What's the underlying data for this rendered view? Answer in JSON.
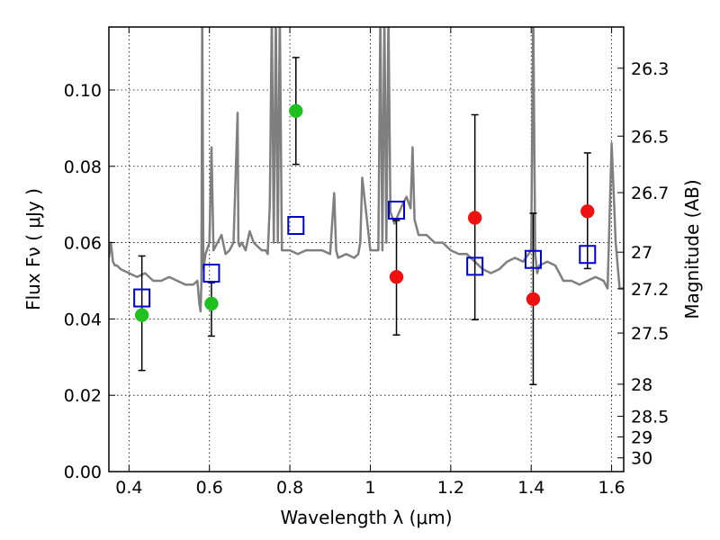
{
  "chart_data": {
    "type": "scatter",
    "xlabel": "Wavelength  λ (μm)",
    "ylabel": "Flux  Fν  ( μJy )",
    "ylabel_right": "Magnitude (AB)",
    "xlim": [
      0.35,
      1.63
    ],
    "ylim": [
      0.0,
      0.1165
    ],
    "grid": true,
    "x_ticks": [
      0.4,
      0.6,
      0.8,
      1.0,
      1.2,
      1.4,
      1.6
    ],
    "x_tick_labels": [
      "0.4",
      "0.6",
      "0.8",
      "1",
      "1.2",
      "1.4",
      "1.6"
    ],
    "y_ticks": [
      0.0,
      0.02,
      0.04,
      0.06,
      0.08,
      0.1
    ],
    "y_tick_labels": [
      "0.00",
      "0.02",
      "0.04",
      "0.06",
      "0.08",
      "0.10"
    ],
    "right_ticks": [
      {
        "label": "26.3",
        "flux": 0.1057
      },
      {
        "label": "26.5",
        "flux": 0.0879
      },
      {
        "label": "26.7",
        "flux": 0.0731
      },
      {
        "label": "27",
        "flux": 0.0575
      },
      {
        "label": "27.2",
        "flux": 0.0479
      },
      {
        "label": "27.5",
        "flux": 0.0363
      },
      {
        "label": "28",
        "flux": 0.0229
      },
      {
        "label": "28.5",
        "flux": 0.0145
      },
      {
        "label": "29",
        "flux": 0.0091
      },
      {
        "label": "30",
        "flux": 0.0036
      }
    ],
    "colors": {
      "spectrum": "#7f7f7f",
      "green_points": "#1fc11f",
      "red_points": "#ef1010",
      "model_squares": "#0000cc",
      "errorbar": "#000000"
    },
    "series": [
      {
        "kind": "spectrum",
        "x": [
          0.35,
          0.355,
          0.36,
          0.365,
          0.37,
          0.38,
          0.4,
          0.42,
          0.44,
          0.46,
          0.48,
          0.5,
          0.52,
          0.54,
          0.56,
          0.57,
          0.575,
          0.578,
          0.58,
          0.582,
          0.585,
          0.59,
          0.6,
          0.605,
          0.61,
          0.62,
          0.63,
          0.64,
          0.65,
          0.66,
          0.67,
          0.672,
          0.675,
          0.68,
          0.69,
          0.7,
          0.71,
          0.72,
          0.73,
          0.74,
          0.745,
          0.75,
          0.755,
          0.76,
          0.765,
          0.77,
          0.775,
          0.78,
          0.79,
          0.8,
          0.82,
          0.84,
          0.86,
          0.88,
          0.9,
          0.91,
          0.915,
          0.92,
          0.94,
          0.96,
          0.97,
          0.975,
          0.98,
          1.0,
          1.02,
          1.025,
          1.03,
          1.035,
          1.04,
          1.045,
          1.05,
          1.06,
          1.08,
          1.09,
          1.1,
          1.105,
          1.11,
          1.115,
          1.12,
          1.14,
          1.16,
          1.18,
          1.2,
          1.22,
          1.24,
          1.26,
          1.28,
          1.3,
          1.32,
          1.34,
          1.36,
          1.38,
          1.4,
          1.405,
          1.41,
          1.415,
          1.42,
          1.44,
          1.46,
          1.48,
          1.5,
          1.52,
          1.54,
          1.56,
          1.58,
          1.59,
          1.6,
          1.61,
          1.62,
          1.63
        ],
        "y": [
          0.056,
          0.06,
          0.055,
          0.054,
          0.054,
          0.053,
          0.052,
          0.051,
          0.052,
          0.05,
          0.05,
          0.051,
          0.05,
          0.049,
          0.049,
          0.05,
          0.044,
          0.042,
          0.05,
          0.12,
          0.053,
          0.057,
          0.06,
          0.085,
          0.058,
          0.06,
          0.062,
          0.057,
          0.058,
          0.06,
          0.094,
          0.06,
          0.059,
          0.06,
          0.058,
          0.063,
          0.06,
          0.059,
          0.058,
          0.058,
          0.057,
          0.07,
          0.12,
          0.06,
          0.12,
          0.06,
          0.12,
          0.058,
          0.058,
          0.058,
          0.057,
          0.058,
          0.058,
          0.058,
          0.057,
          0.073,
          0.058,
          0.056,
          0.057,
          0.056,
          0.057,
          0.06,
          0.077,
          0.058,
          0.058,
          0.12,
          0.058,
          0.12,
          0.06,
          0.12,
          0.068,
          0.065,
          0.07,
          0.072,
          0.069,
          0.085,
          0.066,
          0.064,
          0.062,
          0.062,
          0.06,
          0.06,
          0.058,
          0.057,
          0.057,
          0.055,
          0.053,
          0.052,
          0.053,
          0.055,
          0.056,
          0.055,
          0.058,
          0.12,
          0.057,
          0.052,
          0.054,
          0.055,
          0.054,
          0.05,
          0.05,
          0.049,
          0.05,
          0.051,
          0.05,
          0.048,
          0.086,
          0.06,
          0.048,
          0.048
        ]
      },
      {
        "kind": "observed_green",
        "x": [
          0.432,
          0.605,
          0.815
        ],
        "y": [
          0.041,
          0.044,
          0.0945
        ],
        "err_low": [
          0.0265,
          0.0355,
          0.0805
        ],
        "err_high": [
          0.0565,
          0.0495,
          0.1085
        ]
      },
      {
        "kind": "observed_red",
        "x": [
          1.065,
          1.26,
          1.405,
          1.54
        ],
        "y": [
          0.051,
          0.0665,
          0.0452,
          0.0682
        ],
        "err_low": [
          0.0358,
          0.0398,
          0.0228,
          0.0532
        ],
        "err_high": [
          0.0658,
          0.0935,
          0.0677,
          0.0835
        ]
      },
      {
        "kind": "model_squares",
        "x": [
          0.432,
          0.605,
          0.815,
          1.065,
          1.26,
          1.405,
          1.54
        ],
        "y": [
          0.0455,
          0.052,
          0.0645,
          0.0685,
          0.0538,
          0.0556,
          0.0569
        ]
      }
    ]
  }
}
